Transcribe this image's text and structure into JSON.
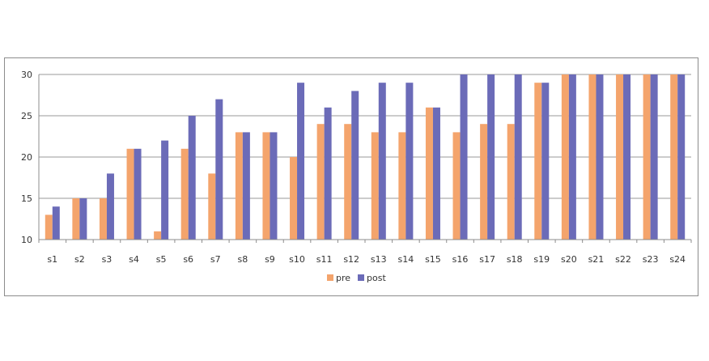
{
  "chart_data": {
    "type": "bar",
    "categories": [
      "s1",
      "s2",
      "s3",
      "s4",
      "s5",
      "s6",
      "s7",
      "s8",
      "s9",
      "s10",
      "s11",
      "s12",
      "s13",
      "s14",
      "s15",
      "s16",
      "s17",
      "s18",
      "s19",
      "s20",
      "s21",
      "s22",
      "s23",
      "s24"
    ],
    "series": [
      {
        "name": "pre",
        "color": "#f4a46c",
        "values": [
          13,
          15,
          15,
          21,
          11,
          21,
          18,
          23,
          23,
          20,
          24,
          24,
          23,
          23,
          26,
          23,
          24,
          24,
          29,
          30,
          30,
          30,
          30,
          30
        ]
      },
      {
        "name": "post",
        "color": "#6b6bb8",
        "values": [
          14,
          15,
          18,
          21,
          22,
          25,
          27,
          23,
          23,
          29,
          26,
          28,
          29,
          29,
          26,
          30,
          30,
          30,
          29,
          30,
          30,
          30,
          30,
          30
        ]
      }
    ],
    "ylim": [
      10,
      30
    ],
    "yticks": [
      10,
      15,
      20,
      25,
      30
    ],
    "grid": true,
    "legend": "bottom-center"
  }
}
